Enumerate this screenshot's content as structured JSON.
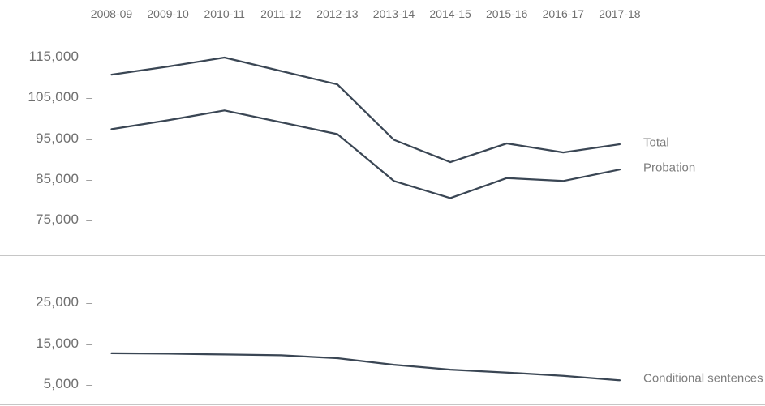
{
  "chart_data": {
    "type": "line",
    "title": "",
    "categories": [
      "2008-09",
      "2009-10",
      "2010-11",
      "2011-12",
      "2012-13",
      "2013-14",
      "2014-15",
      "2015-16",
      "2016-17",
      "2017-18"
    ],
    "series": [
      {
        "name": "Total",
        "panel": "top",
        "values": [
          110600,
          112600,
          114800,
          111500,
          108200,
          94600,
          89100,
          93700,
          91500,
          93500
        ]
      },
      {
        "name": "Probation",
        "panel": "top",
        "values": [
          97200,
          99400,
          101800,
          98900,
          96000,
          84500,
          80300,
          85200,
          84500,
          87300
        ]
      },
      {
        "name": "Conditional sentences",
        "panel": "bottom",
        "values": [
          12600,
          12500,
          12300,
          12100,
          11400,
          9800,
          8600,
          7900,
          7100,
          6000
        ]
      }
    ],
    "panels": [
      {
        "id": "top",
        "ytick_labels": [
          "115,000",
          "105,000",
          "95,000",
          "85,000",
          "75,000"
        ],
        "ylim": [
          70000,
          118000
        ]
      },
      {
        "id": "bottom",
        "ytick_labels": [
          "25,000",
          "15,000",
          "5,000"
        ],
        "ylim": [
          0,
          30000
        ]
      }
    ],
    "tick_dash": "–",
    "legend_position": "right of line ends",
    "grid": false,
    "line_color": "#3a4654",
    "axis_label_color": "#6f6f6f",
    "legend_label_color": "#7d7d7d",
    "divider_color": "#c6c6c6"
  }
}
